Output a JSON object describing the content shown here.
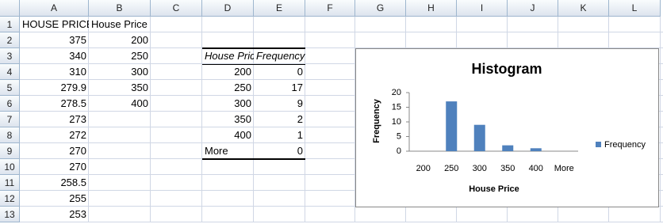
{
  "sheet": {
    "columns": [
      "A",
      "B",
      "C",
      "D",
      "E",
      "F",
      "G",
      "H",
      "I",
      "J",
      "K",
      "L"
    ],
    "rows": [
      {
        "number": "1",
        "cells": {
          "A": "HOUSE PRICE",
          "B": "House Price"
        }
      },
      {
        "number": "2",
        "cells": {
          "A": "375",
          "B": "200"
        }
      },
      {
        "number": "3",
        "cells": {
          "A": "340",
          "B": "250",
          "D": "House Price",
          "E": "Frequency"
        }
      },
      {
        "number": "4",
        "cells": {
          "A": "310",
          "B": "300",
          "D": "200",
          "E": "0"
        }
      },
      {
        "number": "5",
        "cells": {
          "A": "279.9",
          "B": "350",
          "D": "250",
          "E": "17"
        }
      },
      {
        "number": "6",
        "cells": {
          "A": "278.5",
          "B": "400",
          "D": "300",
          "E": "9"
        }
      },
      {
        "number": "7",
        "cells": {
          "A": "273",
          "D": "350",
          "E": "2"
        }
      },
      {
        "number": "8",
        "cells": {
          "A": "272",
          "D": "400",
          "E": "1"
        }
      },
      {
        "number": "9",
        "cells": {
          "A": "270",
          "D": "More",
          "E": "0"
        }
      },
      {
        "number": "10",
        "cells": {
          "A": "270"
        }
      },
      {
        "number": "11",
        "cells": {
          "A": "258.5"
        }
      },
      {
        "number": "12",
        "cells": {
          "A": "255"
        }
      },
      {
        "number": "13",
        "cells": {
          "A": "253"
        }
      }
    ]
  },
  "chart_data": {
    "type": "bar",
    "title": "Histogram",
    "x_label": "House Price",
    "y_label": "Frequency",
    "categories": [
      "200",
      "250",
      "300",
      "350",
      "400",
      "More"
    ],
    "series": [
      {
        "name": "Frequency",
        "color": "#4f81bd",
        "values": [
          0,
          17,
          9,
          2,
          1,
          0
        ]
      }
    ],
    "ylim": [
      0,
      20
    ],
    "yticks": [
      0,
      5,
      10,
      15,
      20
    ],
    "legend": "right"
  }
}
